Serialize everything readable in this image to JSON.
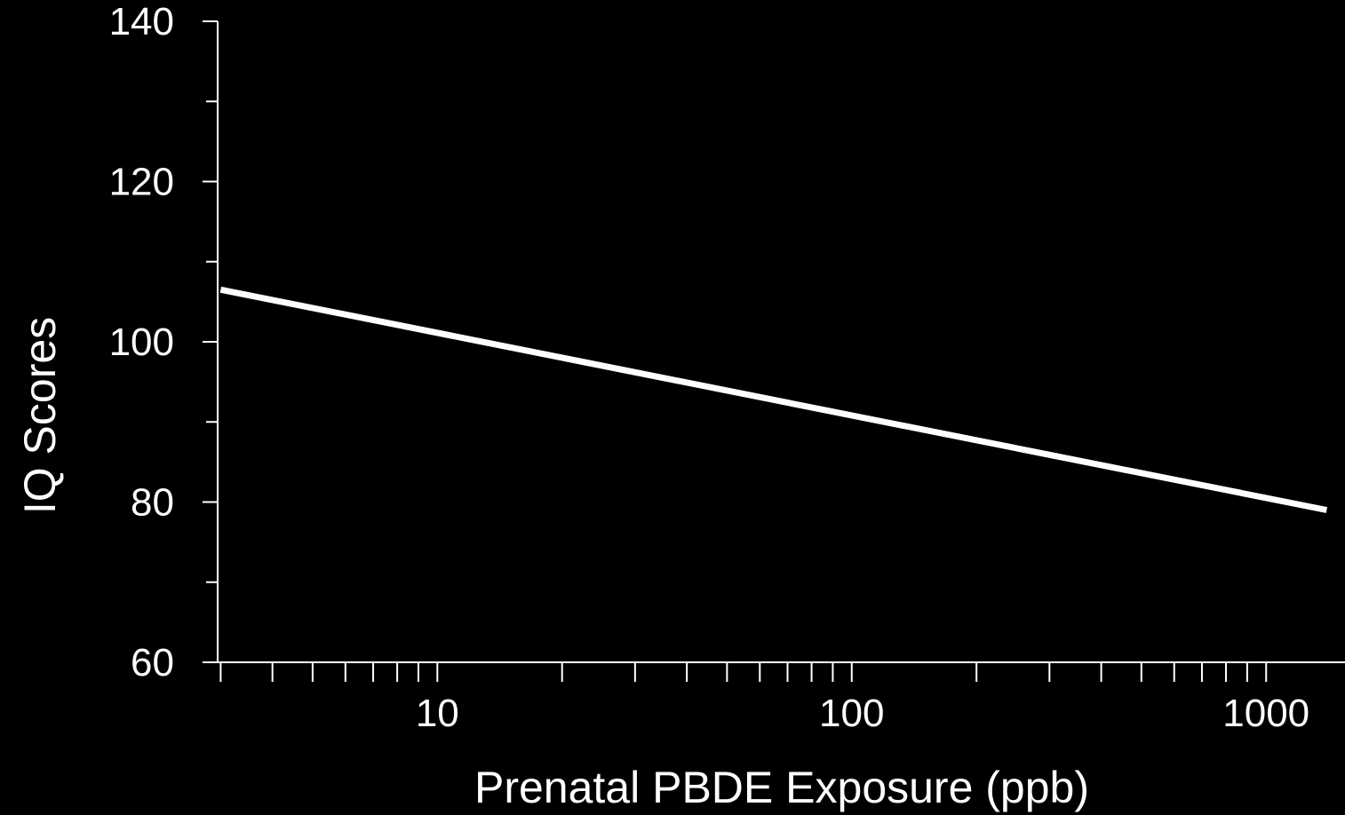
{
  "chart_data": {
    "type": "line",
    "title": "",
    "xlabel": "Prenatal PBDE Exposure (ppb)",
    "ylabel": "IQ Scores",
    "x_scale": "log",
    "xlim": [
      2.95,
      1550
    ],
    "ylim": [
      60,
      140
    ],
    "y_ticks_major": [
      60,
      80,
      100,
      120,
      140
    ],
    "y_ticks_minor": [
      70,
      90,
      110,
      130
    ],
    "x_ticks_labeled": [
      10,
      100,
      1000
    ],
    "x_ticks_minor": [
      3,
      4,
      5,
      6,
      7,
      8,
      9,
      20,
      30,
      40,
      50,
      60,
      70,
      80,
      90,
      200,
      300,
      400,
      500,
      600,
      700,
      800,
      900
    ],
    "grid": false,
    "legend": "none",
    "series": [
      {
        "x": [
          3,
          1400
        ],
        "y": [
          106.5,
          79
        ]
      }
    ],
    "colors": {
      "background": "#000000",
      "foreground": "#ffffff",
      "line": "#ffffff"
    }
  }
}
